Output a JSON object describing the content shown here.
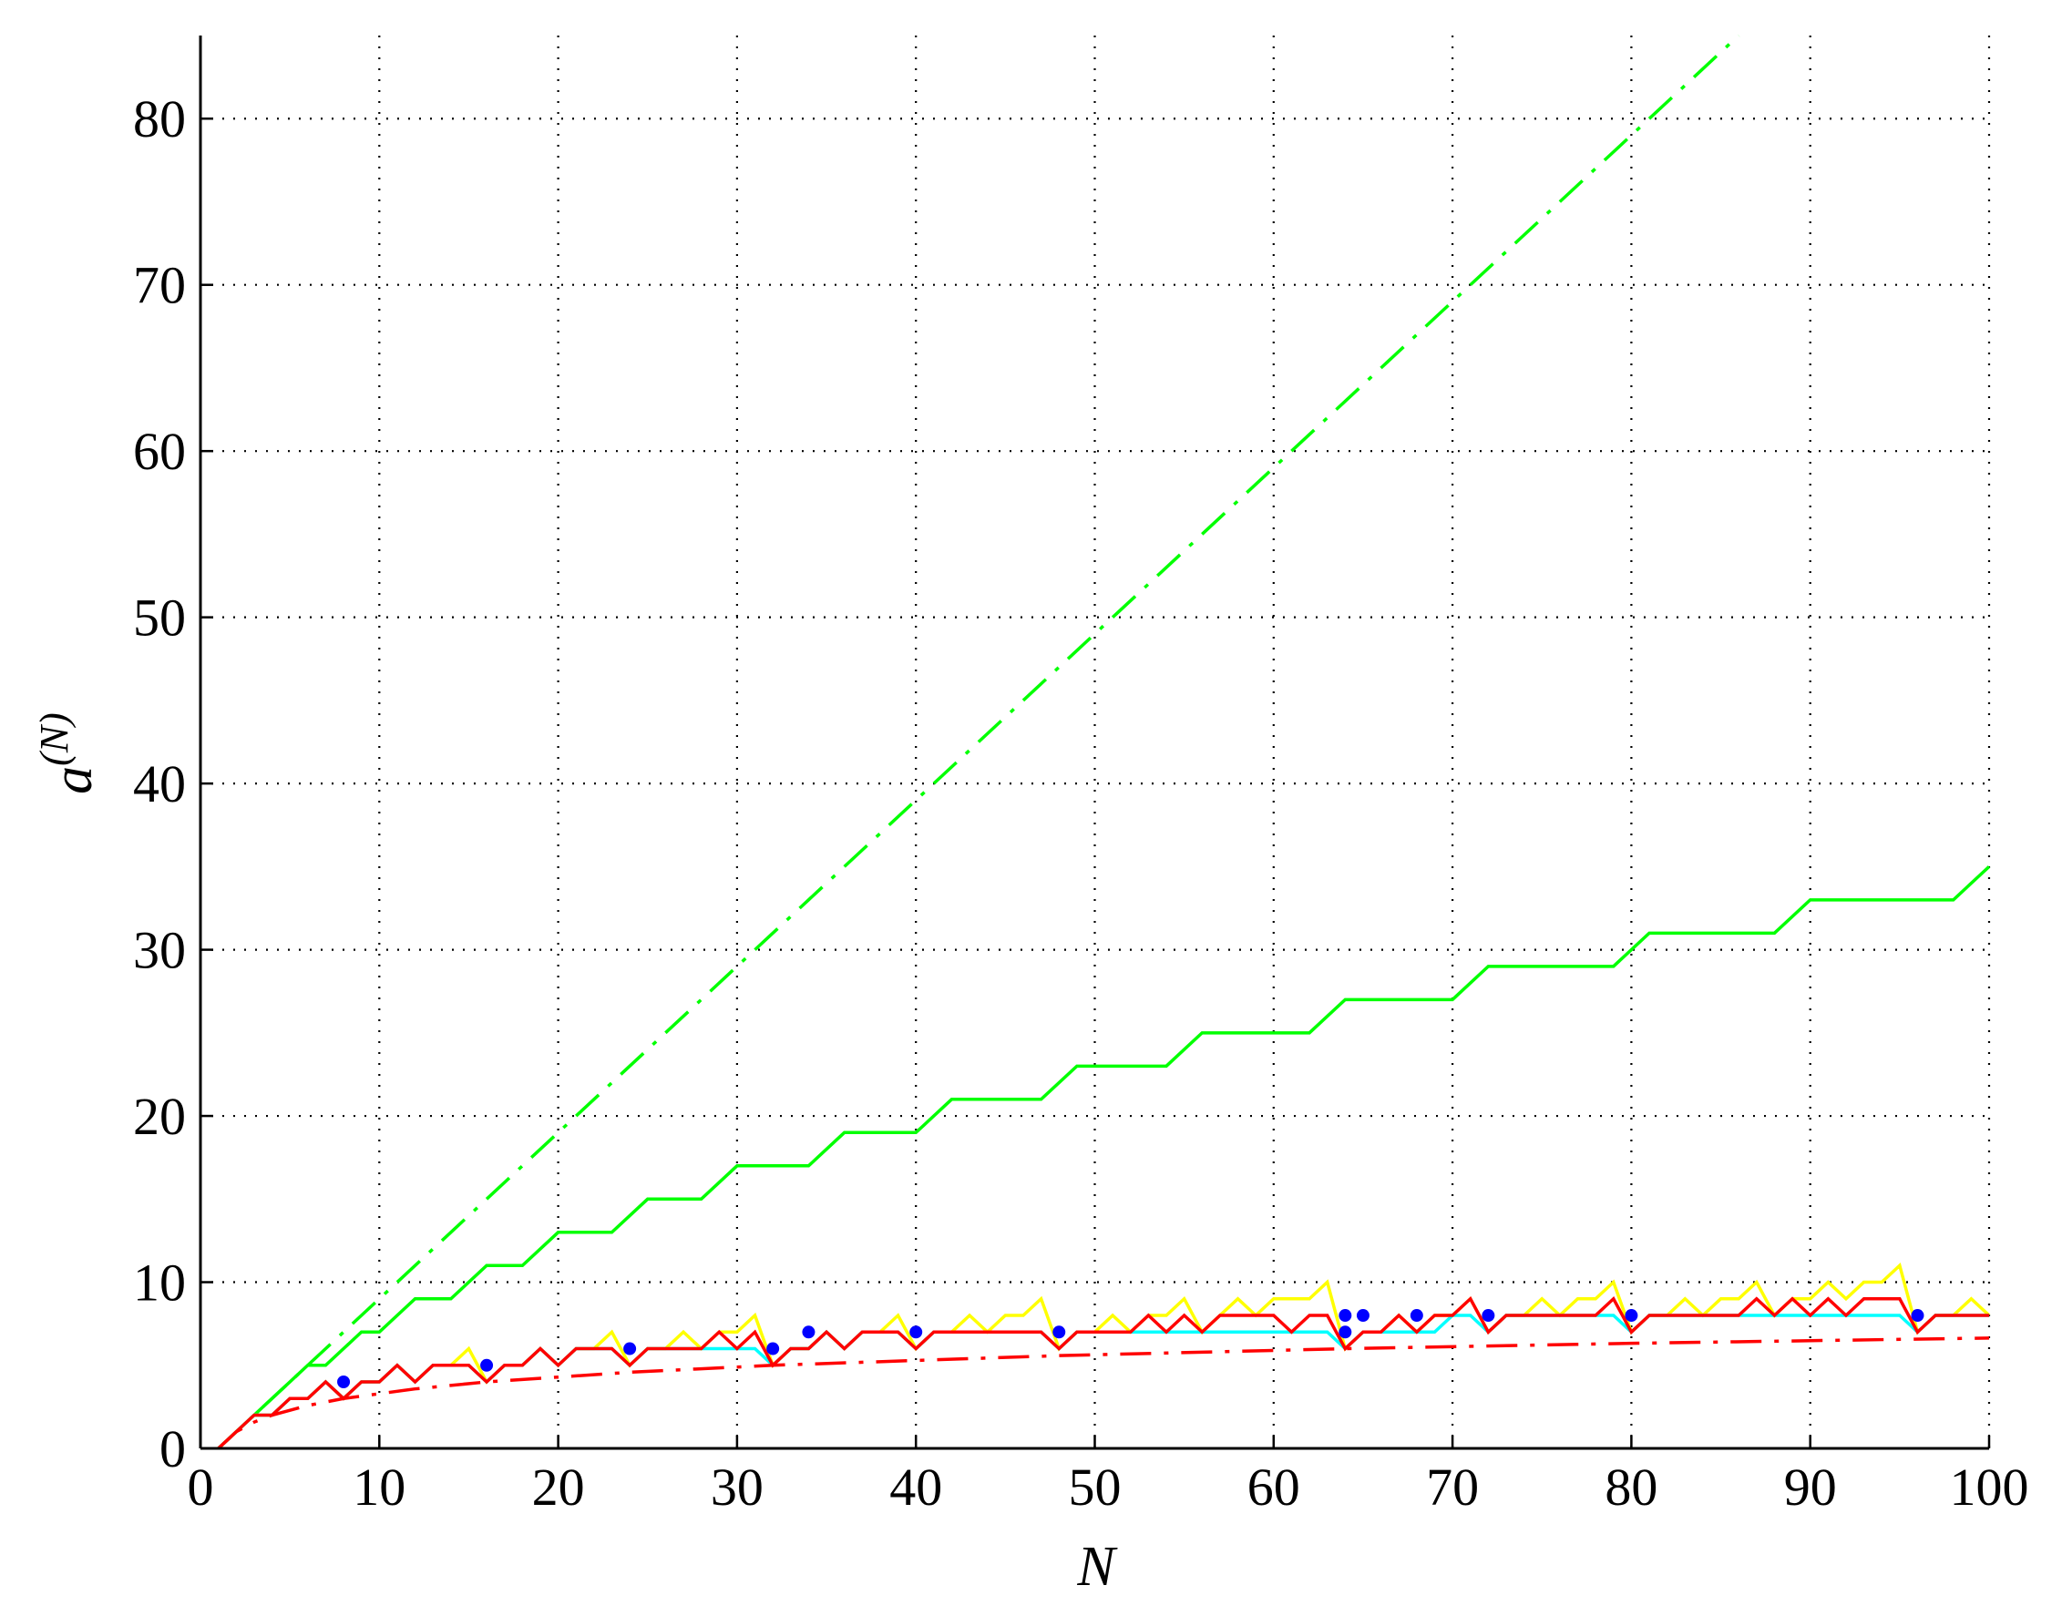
{
  "chart_data": {
    "type": "line",
    "x_label": "N",
    "y_label": "a",
    "y_label_sup": "(N)",
    "xlim": [
      0,
      100
    ],
    "ylim": [
      0,
      85
    ],
    "xticks": [
      0,
      10,
      20,
      30,
      40,
      50,
      60,
      70,
      80,
      90,
      100
    ],
    "yticks": [
      0,
      10,
      20,
      30,
      40,
      50,
      60,
      70,
      80
    ],
    "grid": true,
    "x": [
      1,
      2,
      3,
      4,
      5,
      6,
      7,
      8,
      9,
      10,
      11,
      12,
      13,
      14,
      15,
      16,
      17,
      18,
      19,
      20,
      21,
      22,
      23,
      24,
      25,
      26,
      27,
      28,
      29,
      30,
      31,
      32,
      33,
      34,
      35,
      36,
      37,
      38,
      39,
      40,
      41,
      42,
      43,
      44,
      45,
      46,
      47,
      48,
      49,
      50,
      51,
      52,
      53,
      54,
      55,
      56,
      57,
      58,
      59,
      60,
      61,
      62,
      63,
      64,
      65,
      66,
      67,
      68,
      69,
      70,
      71,
      72,
      73,
      74,
      75,
      76,
      77,
      78,
      79,
      80,
      81,
      82,
      83,
      84,
      85,
      86,
      87,
      88,
      89,
      90,
      91,
      92,
      93,
      94,
      95,
      96,
      97,
      98,
      99,
      100
    ],
    "series": [
      {
        "color": "#00ff00",
        "style": "dashdot",
        "x": [
          1,
          86
        ],
        "values": [
          0,
          85
        ]
      },
      {
        "color": "#00ff00",
        "style": "solid",
        "x": [
          1,
          6,
          7,
          9,
          10,
          12,
          14,
          16,
          18,
          20,
          23,
          25,
          28,
          30,
          34,
          36,
          40,
          42,
          47,
          49,
          54,
          56,
          62,
          64,
          70,
          72,
          79,
          81,
          88,
          90,
          98,
          100
        ],
        "values": [
          0,
          5,
          5,
          7,
          7,
          9,
          9,
          11,
          11,
          13,
          13,
          15,
          15,
          17,
          17,
          19,
          19,
          21,
          21,
          23,
          23,
          25,
          25,
          27,
          27,
          29,
          29,
          31,
          31,
          33,
          33,
          35
        ]
      },
      {
        "color": "#ffff00",
        "style": "solid",
        "values": [
          0,
          1,
          2,
          2,
          3,
          3,
          4,
          3,
          4,
          4,
          5,
          4,
          5,
          5,
          6,
          4,
          5,
          5,
          6,
          5,
          6,
          6,
          7,
          5,
          6,
          6,
          7,
          6,
          7,
          7,
          8,
          5,
          6,
          6,
          7,
          6,
          7,
          7,
          8,
          6,
          7,
          7,
          8,
          7,
          8,
          8,
          9,
          6,
          7,
          7,
          8,
          7,
          8,
          8,
          9,
          7,
          8,
          9,
          8,
          9,
          9,
          9,
          10,
          6,
          7,
          7,
          8,
          7,
          8,
          8,
          9,
          7,
          8,
          8,
          9,
          8,
          9,
          9,
          10,
          7,
          8,
          8,
          9,
          8,
          9,
          9,
          10,
          8,
          9,
          9,
          10,
          9,
          10,
          10,
          11,
          7,
          8,
          8,
          9,
          8
        ]
      },
      {
        "color": "#00ffff",
        "style": "solid",
        "values": [
          0,
          1,
          2,
          2,
          3,
          3,
          4,
          3,
          4,
          4,
          5,
          4,
          5,
          5,
          5,
          4,
          5,
          5,
          6,
          5,
          6,
          6,
          6,
          5,
          6,
          6,
          6,
          6,
          6,
          6,
          6,
          5,
          6,
          6,
          7,
          6,
          7,
          7,
          7,
          6,
          7,
          7,
          7,
          7,
          7,
          7,
          7,
          6,
          7,
          7,
          7,
          7,
          7,
          7,
          7,
          7,
          7,
          7,
          7,
          7,
          7,
          7,
          7,
          6,
          7,
          7,
          7,
          7,
          7,
          8,
          8,
          7,
          8,
          8,
          8,
          8,
          8,
          8,
          8,
          7,
          8,
          8,
          8,
          8,
          8,
          8,
          8,
          8,
          8,
          8,
          8,
          8,
          8,
          8,
          8,
          7,
          8,
          8,
          8,
          8
        ]
      },
      {
        "color": "#ff0000",
        "style": "solid",
        "values": [
          0,
          1,
          2,
          2,
          3,
          3,
          4,
          3,
          4,
          4,
          5,
          4,
          5,
          5,
          5,
          4,
          5,
          5,
          6,
          5,
          6,
          6,
          6,
          5,
          6,
          6,
          6,
          6,
          7,
          6,
          7,
          5,
          6,
          6,
          7,
          6,
          7,
          7,
          7,
          6,
          7,
          7,
          7,
          7,
          7,
          7,
          7,
          6,
          7,
          7,
          7,
          7,
          8,
          7,
          8,
          7,
          8,
          8,
          8,
          8,
          7,
          8,
          8,
          6,
          7,
          7,
          8,
          7,
          8,
          8,
          9,
          7,
          8,
          8,
          8,
          8,
          8,
          8,
          9,
          7,
          8,
          8,
          8,
          8,
          8,
          8,
          9,
          8,
          9,
          8,
          9,
          8,
          9,
          9,
          9,
          7,
          8,
          8,
          8,
          8
        ]
      },
      {
        "color": "#ff0000",
        "style": "dashdot",
        "x": [
          1,
          2,
          3,
          4,
          6,
          8,
          12,
          16,
          24,
          32,
          48,
          64,
          80,
          100
        ],
        "values": [
          0,
          1,
          1.58,
          2,
          2.58,
          3,
          3.58,
          4,
          4.58,
          5,
          5.58,
          6,
          6.32,
          6.64
        ]
      },
      {
        "color": "#0000ff",
        "style": "dot",
        "x": [
          8,
          16,
          24,
          32,
          34,
          40,
          48,
          64,
          64,
          65,
          68,
          72,
          80,
          96
        ],
        "values": [
          4,
          5,
          6,
          6,
          7,
          7,
          7,
          8,
          7,
          8,
          8,
          8,
          8,
          8
        ]
      }
    ]
  }
}
